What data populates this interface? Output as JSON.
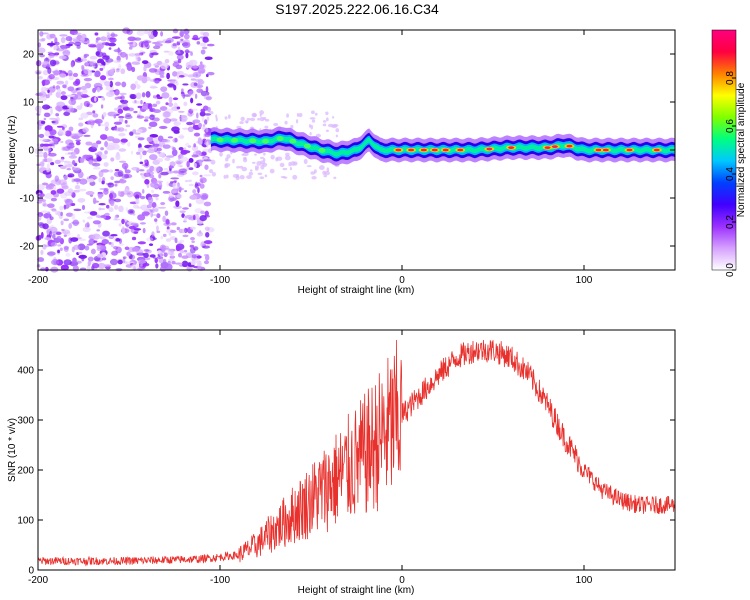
{
  "title": "S197.2025.222.06.16.C34",
  "chart_data": [
    {
      "type": "heatmap",
      "xlabel": "Height of straight line (km)",
      "ylabel": "Frequency (Hz)",
      "xlim": [
        -200,
        150
      ],
      "ylim": [
        -25,
        25
      ],
      "xticks": [
        -200,
        -100,
        0,
        100
      ],
      "yticks": [
        -20,
        -10,
        0,
        10,
        20
      ],
      "colorbar": {
        "label": "Normalized spectral amplitude",
        "range": [
          0,
          1
        ],
        "ticks": [
          "0.0",
          "0.2",
          "0.4",
          "0.6",
          "0.8"
        ],
        "colors": [
          "#ffffff",
          "#d6a0ff",
          "#9b30ff",
          "#4000ff",
          "#0040ff",
          "#00c8ff",
          "#00ff80",
          "#80ff00",
          "#ffff00",
          "#ff8000",
          "#ff0040",
          "#ff0080"
        ]
      },
      "ridge": {
        "description_points_x": [
          -105,
          -90,
          -75,
          -65,
          -55,
          -45,
          -35,
          -25,
          -18,
          -12,
          0,
          20,
          40,
          60,
          80,
          90,
          100,
          120,
          150
        ],
        "description_points_y": [
          2.2,
          2.0,
          1.8,
          2.5,
          1.2,
          0.0,
          -0.8,
          0.0,
          2.0,
          0.0,
          0.0,
          0.0,
          0.0,
          0.5,
          0.5,
          1.0,
          0.0,
          0.0,
          0.0
        ]
      }
    },
    {
      "type": "line",
      "xlabel": "Height of straight line (km)",
      "ylabel": "SNR (10 * v/v)",
      "xlim": [
        -200,
        150
      ],
      "ylim": [
        0,
        480
      ],
      "xticks": [
        -200,
        -100,
        0,
        100
      ],
      "yticks": [
        0,
        100,
        200,
        300,
        400
      ],
      "series": [
        {
          "name": "SNR",
          "color": "#e8302c",
          "envelope_x": [
            -200,
            -150,
            -110,
            -90,
            -80,
            -70,
            -60,
            -50,
            -40,
            -30,
            -20,
            -10,
            0,
            10,
            20,
            30,
            40,
            50,
            60,
            70,
            80,
            90,
            100,
            110,
            120,
            130,
            140,
            150
          ],
          "envelope_y": [
            18,
            18,
            22,
            30,
            50,
            80,
            110,
            140,
            170,
            200,
            230,
            270,
            310,
            350,
            390,
            425,
            440,
            440,
            425,
            390,
            330,
            260,
            200,
            160,
            140,
            130,
            130,
            130
          ]
        }
      ]
    }
  ]
}
